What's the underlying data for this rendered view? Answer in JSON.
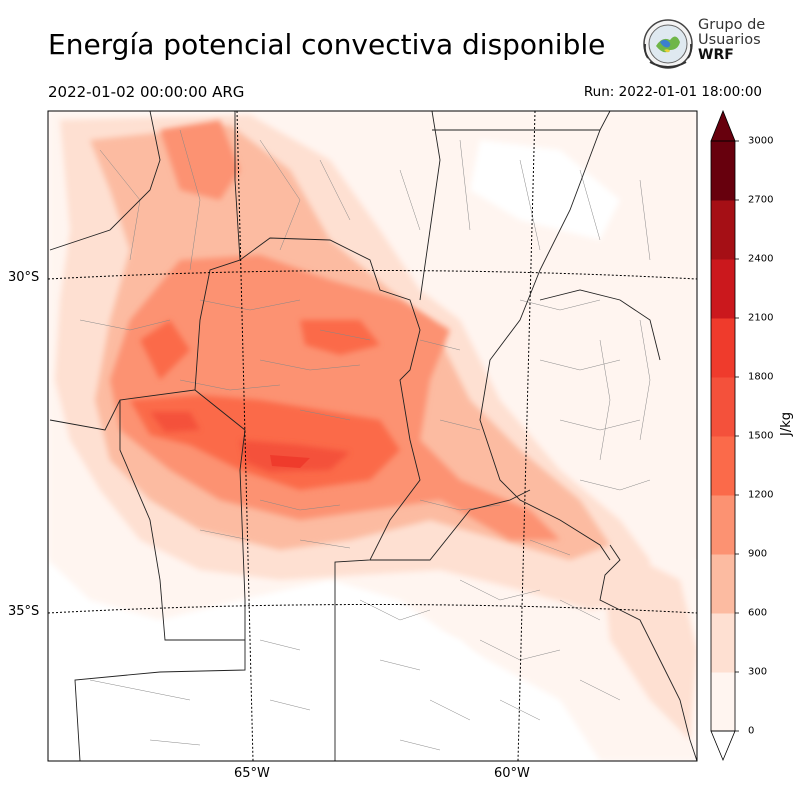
{
  "header": {
    "title": "Energía potencial convectiva disponible",
    "valid_time": "2022-01-02 00:00:00 ARG",
    "run_time": "Run: 2022-01-01 18:00:00"
  },
  "logo": {
    "line1": "Grupo de",
    "line2": "Usuarios",
    "line3": "WRF"
  },
  "map": {
    "lat_labels": [
      "30°S",
      "35°S"
    ],
    "lon_labels": [
      "65°W",
      "60°W"
    ]
  },
  "colorbar": {
    "unit": "J/kg",
    "ticks": [
      "0",
      "300",
      "600",
      "900",
      "1200",
      "1500",
      "1800",
      "2100",
      "2400",
      "2700",
      "3000"
    ],
    "colors": [
      "#fff5f0",
      "#fee0d2",
      "#fcbba1",
      "#fc9272",
      "#fb6a4a",
      "#f4513b",
      "#ef3b2c",
      "#cb181d",
      "#a50f15",
      "#67000d"
    ]
  }
}
